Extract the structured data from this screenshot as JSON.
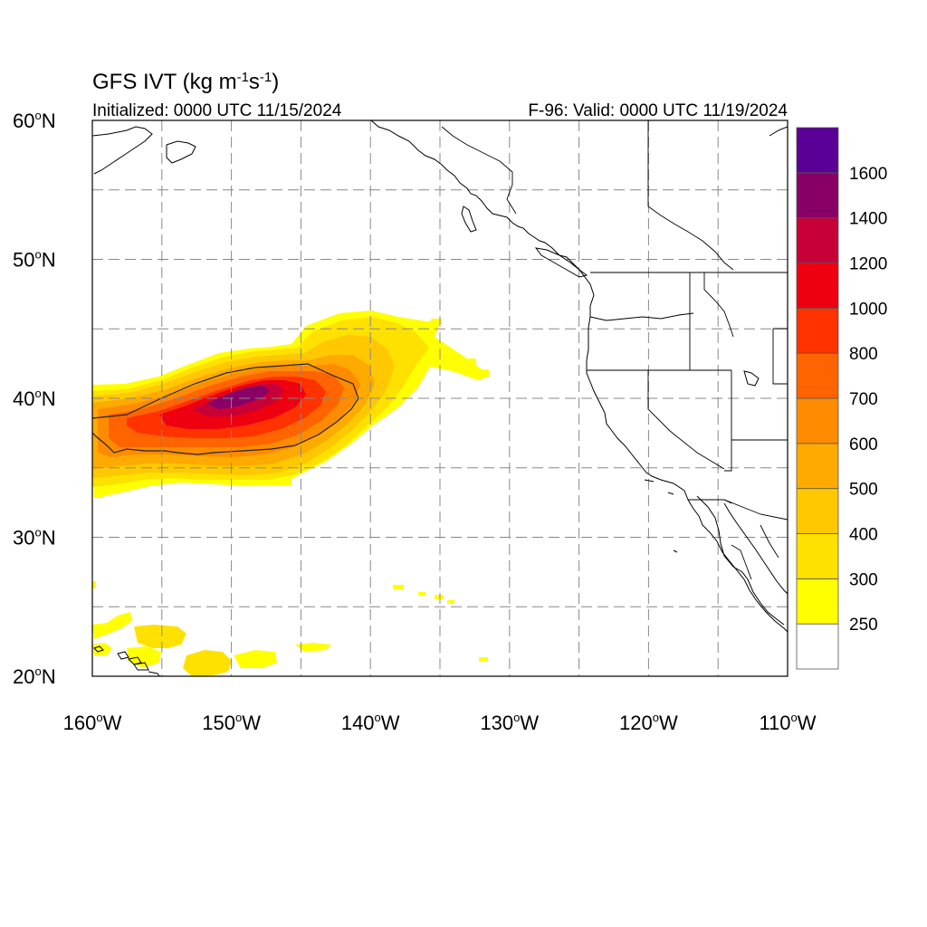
{
  "header": {
    "title_main": "GFS IVT (kg m",
    "title_exp1": "-1",
    "title_mid": "s",
    "title_exp2": "-1",
    "title_end": ")",
    "initialized": "Initialized: 0000 UTC 11/15/2024",
    "valid": "F-96: Valid: 0000 UTC 11/19/2024"
  },
  "axes": {
    "lat_labels": [
      {
        "value": 60,
        "num": "60",
        "dir": "N"
      },
      {
        "value": 50,
        "num": "50",
        "dir": "N"
      },
      {
        "value": 40,
        "num": "40",
        "dir": "N"
      },
      {
        "value": 30,
        "num": "30",
        "dir": "N"
      },
      {
        "value": 20,
        "num": "20",
        "dir": "N"
      }
    ],
    "lon_labels": [
      {
        "value": -160,
        "num": "160",
        "dir": "W"
      },
      {
        "value": -150,
        "num": "150",
        "dir": "W"
      },
      {
        "value": -140,
        "num": "140",
        "dir": "W"
      },
      {
        "value": -130,
        "num": "130",
        "dir": "W"
      },
      {
        "value": -120,
        "num": "120",
        "dir": "W"
      },
      {
        "value": -110,
        "num": "110",
        "dir": "W"
      }
    ],
    "lat_range": [
      20,
      60
    ],
    "lon_range": [
      -160,
      -110
    ],
    "grid": true
  },
  "colorbar": {
    "colors": [
      "#ffffff",
      "#ffff00",
      "#ffe100",
      "#ffc800",
      "#ffaa00",
      "#ff8c00",
      "#ff6400",
      "#ff3200",
      "#ee0011",
      "#c80038",
      "#880066",
      "#5a0096"
    ],
    "labels": [
      "250",
      "300",
      "400",
      "500",
      "600",
      "700",
      "800",
      "1000",
      "1200",
      "1400",
      "1600"
    ]
  },
  "chart_data": {
    "type": "heatmap",
    "field": "IVT",
    "units": "kg m-1 s-1",
    "x_range": [
      -160,
      -110
    ],
    "y_range": [
      20,
      60
    ],
    "levels": [
      250,
      300,
      400,
      500,
      600,
      700,
      800,
      1000,
      1200,
      1400,
      1600
    ],
    "contour_line_level": 1000,
    "features": [
      {
        "region": "atmospheric river core",
        "lon": -149,
        "lat": 39.8,
        "peak_value": 1500
      },
      {
        "region": "atmospheric river extent",
        "lon_min": -160,
        "lon_max": -131.5,
        "lat_min": 33,
        "lat_max": 45.5
      },
      {
        "region": "subtropical patches near Hawaii",
        "lon_min": -160,
        "lon_max": -145,
        "lat_min": 20,
        "lat_max": 24,
        "approx_value": 300
      }
    ]
  }
}
